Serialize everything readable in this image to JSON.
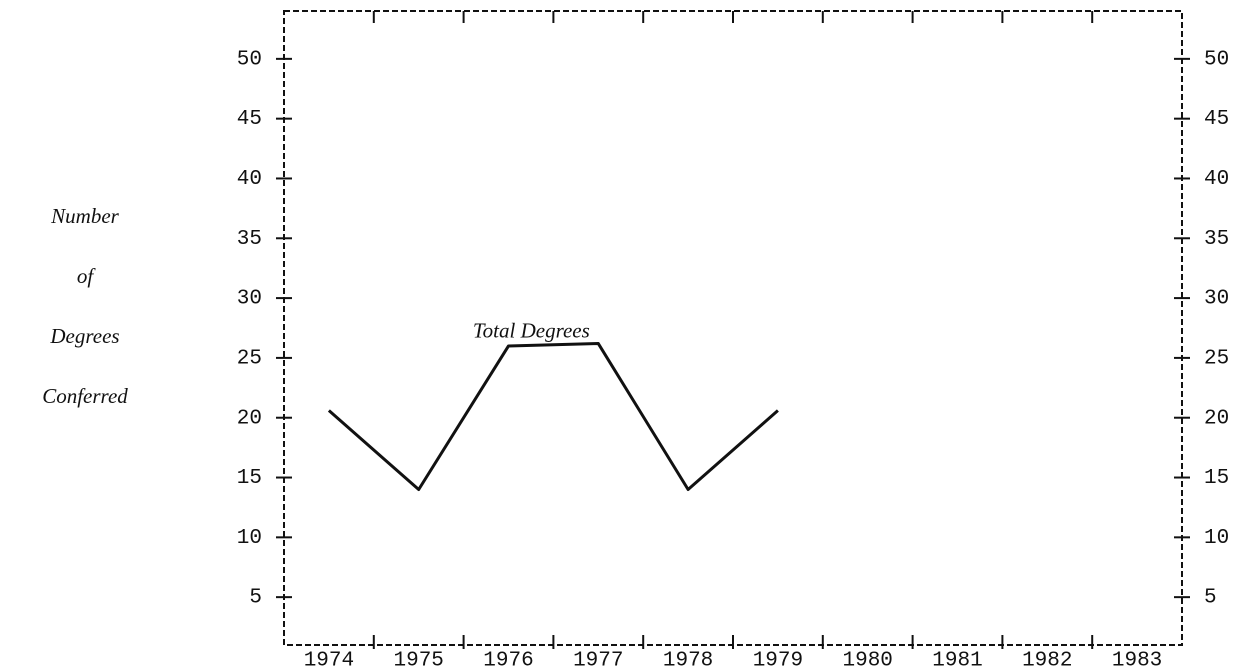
{
  "chart_data": {
    "type": "line",
    "y_label": [
      "Number",
      "of",
      "Degrees",
      "Conferred"
    ],
    "categories": [
      "1974",
      "1975",
      "1976",
      "1977",
      "1978",
      "1979",
      "1980",
      "1981",
      "1982",
      "1983"
    ],
    "series": [
      {
        "name": "Total Degrees",
        "color": "#111111",
        "values": [
          20.6,
          14,
          26,
          26.2,
          14,
          20.6,
          null,
          null,
          null,
          null
        ]
      }
    ],
    "ylim": [
      1,
      54
    ],
    "yticks": [
      5,
      10,
      15,
      20,
      25,
      30,
      35,
      40,
      45,
      50
    ],
    "y2lim": [
      1,
      54
    ],
    "y2ticks": [
      5,
      10,
      15,
      20,
      25,
      30,
      35,
      40,
      45,
      50
    ]
  }
}
